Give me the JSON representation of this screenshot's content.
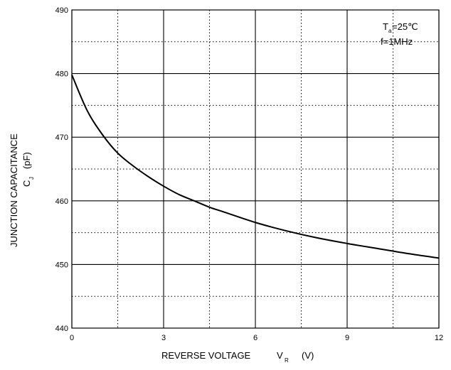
{
  "chart_data": {
    "type": "line",
    "title": "",
    "xlabel": {
      "main": "REVERSE VOLTAGE",
      "symbol": "V",
      "subscript": "R",
      "unit": "(V)"
    },
    "ylabel": {
      "line1": "JUNCTION CAPACITANCE",
      "symbol": "C",
      "subscript": "J",
      "unit": "(pF)"
    },
    "xlim": [
      0,
      12
    ],
    "ylim": [
      440,
      490
    ],
    "x_major_ticks": [
      0,
      3,
      6,
      9,
      12
    ],
    "x_minor_ticks": [
      1.5,
      4.5,
      7.5,
      10.5
    ],
    "y_major_ticks": [
      440,
      450,
      460,
      470,
      480,
      490
    ],
    "y_minor_ticks": [
      445,
      455,
      465,
      475,
      485
    ],
    "x_tick_labels": [
      "0",
      "3",
      "6",
      "9",
      "12"
    ],
    "y_tick_labels": [
      "440",
      "450",
      "460",
      "470",
      "480",
      "490"
    ],
    "grid": {
      "major": "solid",
      "minor": "dotted"
    },
    "annotation": {
      "line1_symbol": "T",
      "line1_subscript": "a",
      "line1_rest": "=25℃",
      "line2": "f=1MHz",
      "placement": "top-right"
    },
    "series": [
      {
        "x": [
          0,
          0.5,
          1,
          1.5,
          2,
          2.5,
          3,
          3.5,
          4,
          4.5,
          5,
          6,
          7,
          8,
          9,
          10,
          11,
          12
        ],
        "y": [
          479.8,
          474.2,
          470.4,
          467.5,
          465.5,
          463.8,
          462.3,
          461.0,
          460.0,
          459.0,
          458.2,
          456.6,
          455.3,
          454.2,
          453.3,
          452.5,
          451.7,
          451.0
        ]
      }
    ]
  }
}
